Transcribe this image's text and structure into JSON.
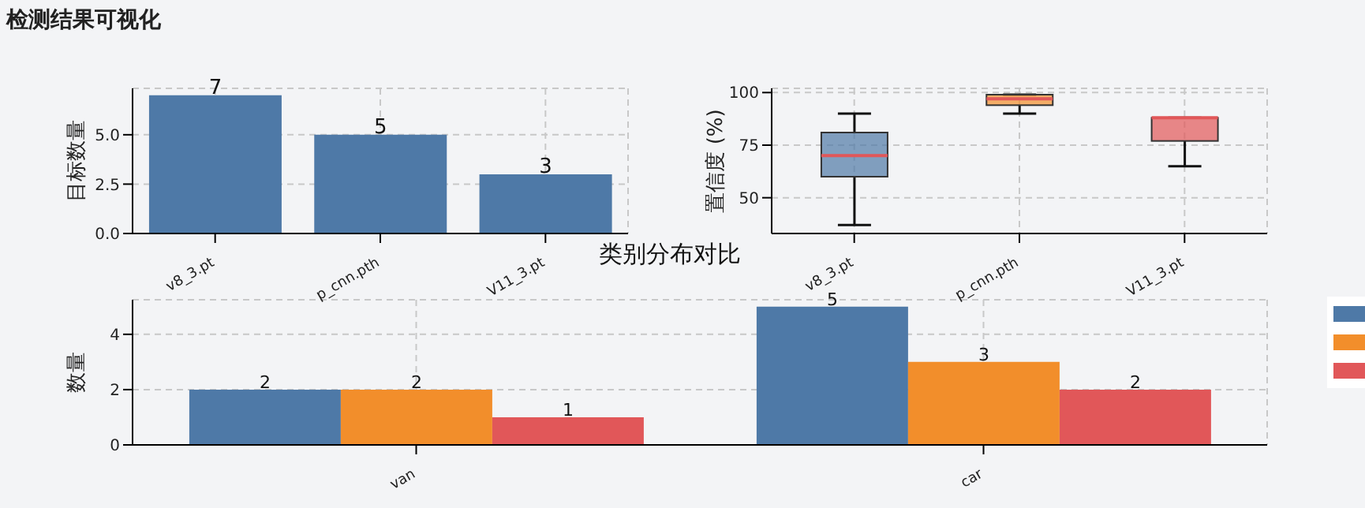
{
  "chart_data": [
    {
      "type": "bar",
      "title": "检测结果可视化",
      "ylabel": "目标数量",
      "categories": [
        "v8_3.pt",
        "p_cnn.pth",
        "V11_3.pt"
      ],
      "values": [
        7,
        5,
        3
      ],
      "color": "#4e79a7",
      "ylim": [
        0,
        7.35
      ],
      "yticks": [
        {
          "value": 0,
          "label": "0.0"
        },
        {
          "value": 2.5,
          "label": "2.5"
        },
        {
          "value": 5,
          "label": "5.0"
        }
      ],
      "grid": true,
      "data_labels": true
    },
    {
      "type": "box",
      "ylabel": "置信度 (%)",
      "categories": [
        "v8_3.pt",
        "p_cnn.pth",
        "V11_3.pt"
      ],
      "colors": [
        "#4e79a7",
        "#f28e2b",
        "#e15759"
      ],
      "boxes": [
        {
          "low": 37,
          "q1": 60,
          "median": 70,
          "q3": 81,
          "high": 90
        },
        {
          "low": 90,
          "q1": 94,
          "median": 97,
          "q3": 99,
          "high": 99
        },
        {
          "low": 65,
          "q1": 77,
          "median": 88,
          "q3": 88,
          "high": 88
        }
      ],
      "ylim": [
        33,
        102
      ],
      "yticks": [
        50,
        75,
        100
      ],
      "grid": true
    },
    {
      "type": "bar",
      "title": "类别分布对比",
      "ylabel": "数量",
      "categories": [
        "van",
        "car"
      ],
      "series": [
        {
          "color": "#4e79a7",
          "values": [
            2,
            5
          ]
        },
        {
          "color": "#f28e2b",
          "values": [
            2,
            3
          ]
        },
        {
          "color": "#e15759",
          "values": [
            1,
            2
          ]
        }
      ],
      "ylim": [
        0,
        5.25
      ],
      "yticks": [
        0,
        2,
        4
      ],
      "grid": true,
      "data_labels": true
    }
  ]
}
